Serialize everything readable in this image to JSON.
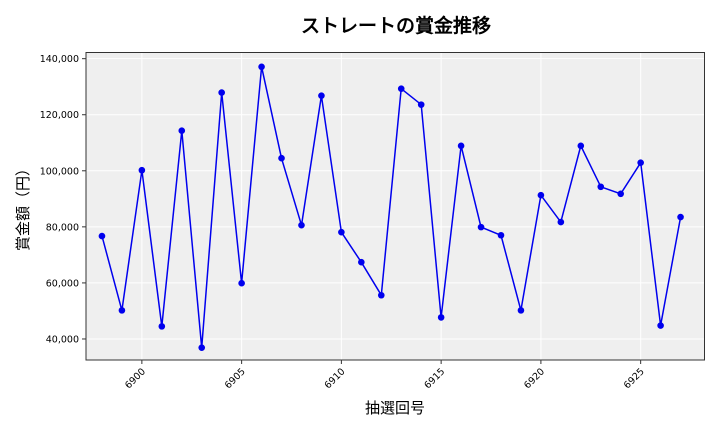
{
  "chart_data": {
    "type": "line",
    "title": "ストレートの賞金推移",
    "xlabel": "抽選回号",
    "ylabel": "賞金額（円）",
    "x": [
      6898,
      6899,
      6900,
      6901,
      6902,
      6903,
      6904,
      6905,
      6906,
      6907,
      6908,
      6909,
      6910,
      6911,
      6912,
      6913,
      6914,
      6915,
      6916,
      6917,
      6918,
      6919,
      6920,
      6921,
      6922,
      6923,
      6924,
      6925,
      6926,
      6927
    ],
    "series": [
      {
        "name": "ストレート",
        "color": "#0000ee",
        "marker": "circle",
        "values": [
          76700,
          50200,
          100200,
          44500,
          114300,
          36900,
          127900,
          59900,
          137100,
          104500,
          80600,
          126800,
          78100,
          67400,
          55600,
          129300,
          123600,
          47700,
          108900,
          79900,
          77000,
          50200,
          91300,
          81700,
          108900,
          94300,
          91800,
          102900,
          44800,
          83500
        ]
      }
    ],
    "x_ticks": [
      6900,
      6905,
      6910,
      6915,
      6920,
      6925
    ],
    "y_ticks": [
      40000,
      60000,
      80000,
      100000,
      120000,
      140000
    ],
    "y_tick_labels": [
      "40,000",
      "60,000",
      "80,000",
      "100,000",
      "120,000",
      "140,000"
    ],
    "xlim": [
      6897.2,
      6928.2
    ],
    "ylim": [
      32500,
      142200
    ],
    "grid": true,
    "legend": false,
    "background": "#efefef"
  }
}
